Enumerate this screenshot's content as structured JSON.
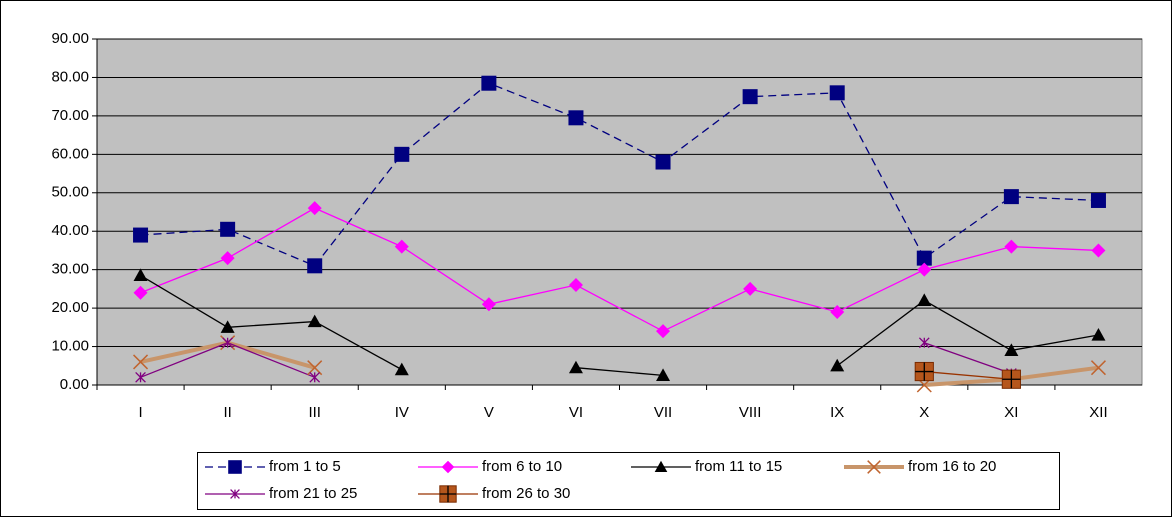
{
  "chart_data": {
    "type": "line",
    "categories": [
      "I",
      "II",
      "III",
      "IV",
      "V",
      "VI",
      "VII",
      "VIII",
      "IX",
      "X",
      "XI",
      "XII"
    ],
    "ylim": [
      0,
      90
    ],
    "yticks": [
      {
        "value": 0,
        "label": "0.00"
      },
      {
        "value": 10,
        "label": "10.00"
      },
      {
        "value": 20,
        "label": "20.00"
      },
      {
        "value": 30,
        "label": "30.00"
      },
      {
        "value": 40,
        "label": "40.00"
      },
      {
        "value": 50,
        "label": "50.00"
      },
      {
        "value": 60,
        "label": "60.00"
      },
      {
        "value": 70,
        "label": "70.00"
      },
      {
        "value": 80,
        "label": "80.00"
      },
      {
        "value": 90,
        "label": "90.00"
      }
    ],
    "grid": true,
    "legend": "bottom",
    "series": [
      {
        "name": "from 1 to 5",
        "color": "#000080",
        "marker": "square",
        "line_style": "dashed",
        "values": [
          39,
          40.5,
          31,
          60,
          78.5,
          69.5,
          58,
          75,
          76,
          33,
          49,
          48
        ]
      },
      {
        "name": "from 6 to 10",
        "color": "#ff00ff",
        "marker": "diamond",
        "line_style": "solid",
        "values": [
          24,
          33,
          46,
          36,
          21,
          26,
          14,
          25,
          19,
          30,
          36,
          35
        ]
      },
      {
        "name": "from 11 to 15",
        "color": "#000000",
        "marker": "triangle",
        "line_style": "solid",
        "values": [
          28.5,
          15,
          16.5,
          4,
          null,
          4.5,
          2.5,
          null,
          5,
          22,
          9,
          13
        ]
      },
      {
        "name": "from 16 to 20",
        "color": "#c0642f",
        "marker": "x",
        "line_style": "thick",
        "values": [
          6,
          11,
          4.5,
          null,
          null,
          null,
          null,
          null,
          null,
          0,
          1.5,
          4.5
        ]
      },
      {
        "name": "from 21 to 25",
        "color": "#800080",
        "marker": "star",
        "line_style": "solid",
        "values": [
          2,
          11,
          2,
          null,
          null,
          null,
          null,
          null,
          null,
          11,
          3,
          null
        ]
      },
      {
        "name": "from 26 to 30",
        "color": "#993300",
        "marker": "plus-square",
        "line_style": "solid",
        "values": [
          null,
          null,
          null,
          null,
          null,
          null,
          null,
          null,
          null,
          3.5,
          1.5,
          null
        ]
      }
    ]
  }
}
